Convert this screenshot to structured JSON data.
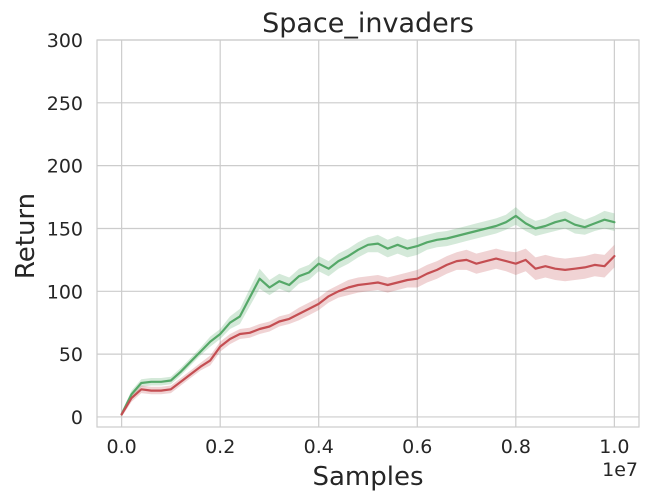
{
  "chart_data": {
    "type": "line",
    "title": "Space_invaders",
    "xlabel": "Samples",
    "ylabel": "Return",
    "x_offset_label": "1e7",
    "xlim": [
      -0.05,
      1.05
    ],
    "ylim": [
      -8,
      300
    ],
    "xticks": [
      0.0,
      0.2,
      0.4,
      0.6,
      0.8,
      1.0
    ],
    "xtick_labels": [
      "0.0",
      "0.2",
      "0.4",
      "0.6",
      "0.8",
      "1.0"
    ],
    "yticks": [
      0,
      50,
      100,
      150,
      200,
      250,
      300
    ],
    "ytick_labels": [
      "0",
      "50",
      "100",
      "150",
      "200",
      "250",
      "300"
    ],
    "grid": true,
    "x": [
      0.0,
      0.02,
      0.04,
      0.06,
      0.08,
      0.1,
      0.12,
      0.14,
      0.16,
      0.18,
      0.2,
      0.22,
      0.24,
      0.26,
      0.28,
      0.3,
      0.32,
      0.34,
      0.36,
      0.38,
      0.4,
      0.42,
      0.44,
      0.46,
      0.48,
      0.5,
      0.52,
      0.54,
      0.56,
      0.58,
      0.6,
      0.62,
      0.64,
      0.66,
      0.68,
      0.7,
      0.72,
      0.74,
      0.76,
      0.78,
      0.8,
      0.82,
      0.84,
      0.86,
      0.88,
      0.9,
      0.92,
      0.94,
      0.96,
      0.98,
      1.0
    ],
    "series": [
      {
        "color": "#55a868",
        "values": [
          2,
          18,
          27,
          28,
          28,
          29,
          36,
          44,
          52,
          60,
          66,
          75,
          80,
          95,
          110,
          103,
          108,
          105,
          112,
          115,
          122,
          118,
          124,
          128,
          133,
          137,
          138,
          134,
          137,
          134,
          136,
          139,
          141,
          142,
          144,
          146,
          148,
          150,
          152,
          155,
          160,
          154,
          150,
          152,
          155,
          157,
          153,
          151,
          154,
          157,
          155
        ],
        "band": [
          2,
          3,
          3,
          3,
          3,
          3,
          3,
          3,
          3,
          4,
          4,
          5,
          6,
          7,
          8,
          6,
          6,
          6,
          6,
          6,
          6,
          6,
          6,
          6,
          6,
          6,
          7,
          7,
          7,
          7,
          7,
          6,
          6,
          6,
          6,
          6,
          6,
          6,
          6,
          6,
          7,
          6,
          6,
          6,
          7,
          7,
          7,
          6,
          6,
          7,
          7
        ]
      },
      {
        "color": "#c44e52",
        "values": [
          2,
          15,
          22,
          21,
          21,
          22,
          28,
          34,
          40,
          45,
          56,
          62,
          66,
          67,
          70,
          72,
          76,
          78,
          82,
          86,
          90,
          96,
          100,
          103,
          105,
          106,
          107,
          105,
          107,
          109,
          110,
          114,
          117,
          121,
          124,
          125,
          122,
          124,
          126,
          124,
          122,
          125,
          118,
          120,
          118,
          117,
          118,
          119,
          121,
          120,
          128
        ],
        "band": [
          2,
          3,
          3,
          3,
          3,
          3,
          3,
          3,
          3,
          4,
          4,
          4,
          4,
          4,
          4,
          4,
          4,
          4,
          5,
          5,
          5,
          5,
          5,
          6,
          6,
          6,
          6,
          6,
          6,
          6,
          7,
          7,
          7,
          7,
          7,
          8,
          8,
          8,
          8,
          8,
          9,
          9,
          9,
          9,
          9,
          9,
          9,
          9,
          9,
          9,
          9
        ]
      }
    ]
  }
}
